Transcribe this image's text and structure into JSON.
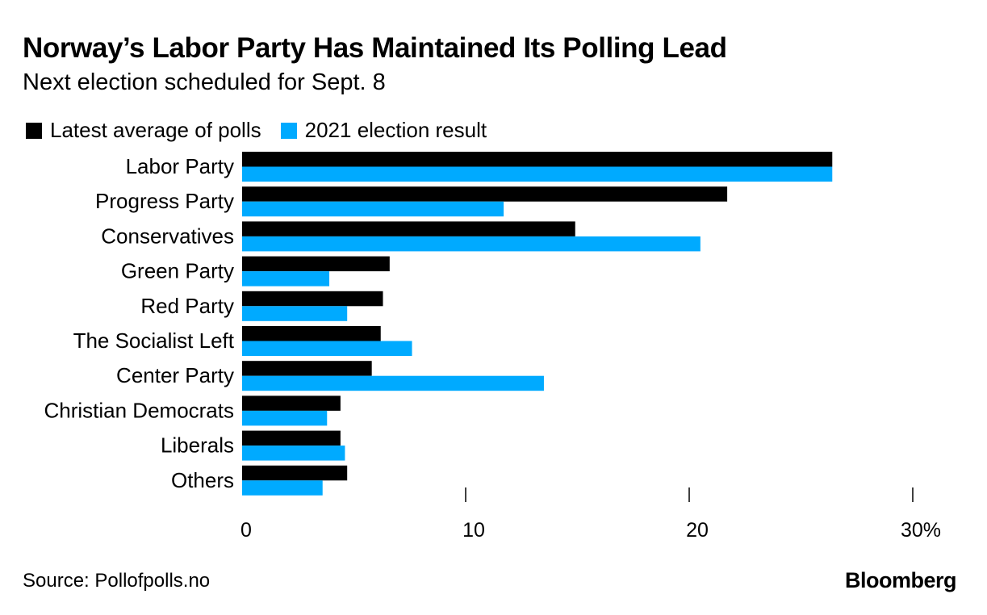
{
  "chart_data": {
    "type": "bar",
    "orientation": "horizontal",
    "title": "Norway’s Labor Party Has Maintained Its Polling Lead",
    "subtitle": "Next election scheduled for Sept. 8",
    "categories": [
      "Labor Party",
      "Progress Party",
      "Conservatives",
      "Green Party",
      "Red Party",
      "The Socialist Left",
      "Center Party",
      "Christian Democrats",
      "Liberals",
      "Others"
    ],
    "series": [
      {
        "name": "Latest average of polls",
        "color": "#000000",
        "values": [
          26.4,
          21.7,
          14.9,
          6.6,
          6.3,
          6.2,
          5.8,
          4.4,
          4.4,
          4.7
        ]
      },
      {
        "name": "2021 election result",
        "color": "#00aaff",
        "values": [
          26.4,
          11.7,
          20.5,
          3.9,
          4.7,
          7.6,
          13.5,
          3.8,
          4.6,
          3.6
        ]
      }
    ],
    "xlim": [
      0,
      30
    ],
    "x_ticks": [
      {
        "value": 0,
        "label": "0"
      },
      {
        "value": 10,
        "label": "10"
      },
      {
        "value": 20,
        "label": "20"
      },
      {
        "value": 30,
        "label": "30%"
      }
    ],
    "grid": false,
    "legend_position": "top-left"
  },
  "footer": {
    "source": "Source: Pollofpolls.no",
    "brand": "Bloomberg"
  }
}
